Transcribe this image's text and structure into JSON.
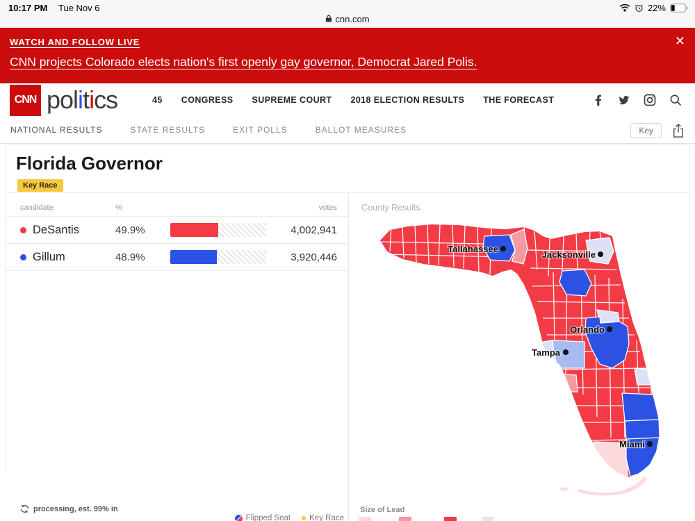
{
  "status_bar": {
    "time": "10:17 PM",
    "date": "Tue Nov 6",
    "url": "cnn.com",
    "battery_percent": "22%"
  },
  "live_banner": {
    "kicker": "WATCH AND FOLLOW LIVE",
    "headline": "CNN projects Colorado elects nation's first openly gay governor, Democrat Jared Polis.",
    "close_label": "✕",
    "background": "#CA0C0C"
  },
  "header": {
    "logo": "CNN",
    "logo_sub_parts": [
      "pol",
      "i",
      "t",
      "i",
      "cs"
    ],
    "nav_items": [
      "45",
      "CONGRESS",
      "SUPREME COURT",
      "2018 ELECTION RESULTS",
      "THE FORECAST"
    ],
    "social_icons": [
      "facebook-icon",
      "twitter-icon",
      "instagram-icon",
      "search-icon"
    ]
  },
  "subnav": {
    "items": [
      "NATIONAL RESULTS",
      "STATE RESULTS",
      "EXIT POLLS",
      "BALLOT MEASURES"
    ],
    "key_button_label": "Key"
  },
  "race": {
    "title": "Florida Governor",
    "badge": "Key Race",
    "badge_color": "#F6C740"
  },
  "results": {
    "columns": {
      "candidate": "candidate",
      "percent": "%",
      "votes": "votes"
    },
    "rows": [
      {
        "name": "DeSantis",
        "percent_label": "49.9%",
        "percent": 49.9,
        "votes": "4,002,941",
        "party_color": "#F33B45"
      },
      {
        "name": "Gillum",
        "percent_label": "48.9%",
        "percent": 48.9,
        "votes": "3,920,446",
        "party_color": "#2B52E2"
      }
    ],
    "status_text": "processing, est. 99% in"
  },
  "legend": {
    "flipped_seat": "Flipped Seat",
    "key_race": "Key Race"
  },
  "map": {
    "title": "County Results",
    "size_of_lead_label": "Size of Lead",
    "cities": [
      {
        "name": "Tallahassee"
      },
      {
        "name": "Jacksonville"
      },
      {
        "name": "Orlando"
      },
      {
        "name": "Tampa"
      },
      {
        "name": "Miami"
      }
    ],
    "colors": {
      "rep_strong": "#F33B45",
      "rep_medium": "#F59AA4",
      "rep_light": "#FBD9DD",
      "dem_strong": "#2B52E2",
      "dem_medium": "#A7BBF2",
      "dem_light": "#DDE1F8"
    },
    "lead_swatches": [
      "#FBD9DD",
      "#F59AA4",
      "#F33B45",
      "#E8E8E8"
    ]
  }
}
